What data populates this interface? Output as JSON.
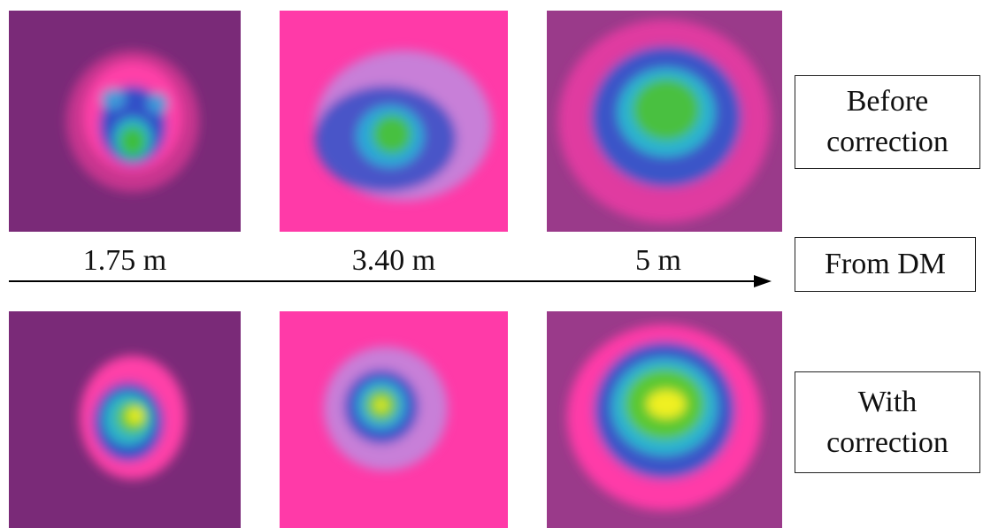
{
  "distances": [
    "1.75 m",
    "3.40 m",
    "5 m"
  ],
  "labels": {
    "before": "Before correction",
    "from": "From DM",
    "with": "With correction"
  }
}
